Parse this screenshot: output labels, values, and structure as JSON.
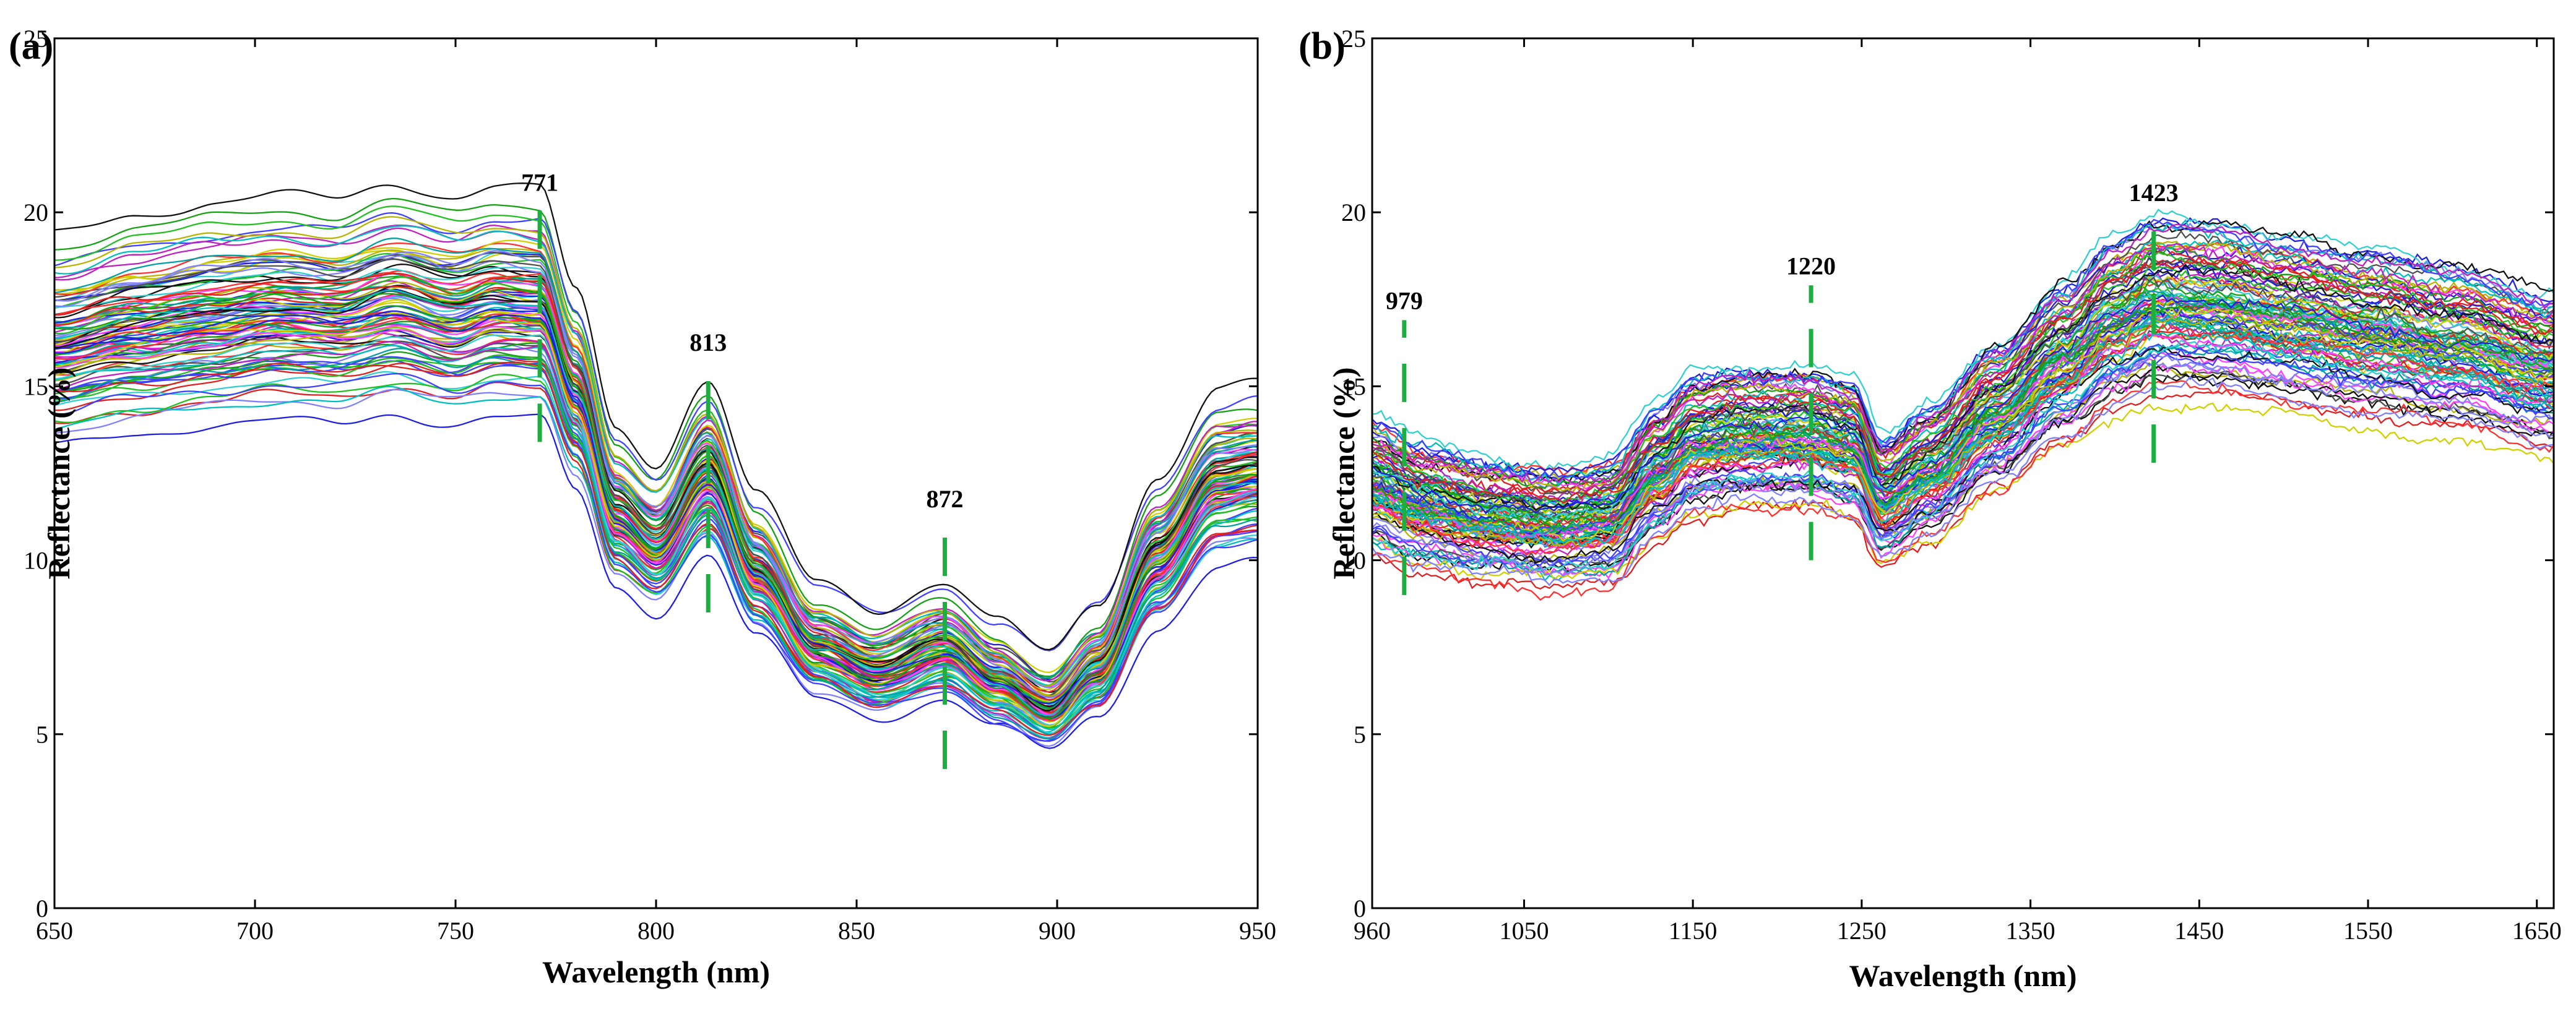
{
  "figure": {
    "description_note": "Two spectral reflectance plots: (a) VNIR range and (b) NIR range; many spectra curves with characteristic wavelengths marked by dashed green lines."
  },
  "chart_data": [
    {
      "type": "line",
      "panel_label": "(a)",
      "title": "",
      "xlabel": "Wavelength (nm)",
      "ylabel": "Reflectance (%)",
      "xlim": [
        650,
        950
      ],
      "ylim": [
        0,
        25
      ],
      "xticks": [
        650,
        700,
        750,
        800,
        850,
        900,
        950
      ],
      "yticks": [
        0,
        5,
        10,
        15,
        20,
        25
      ],
      "grid": false,
      "n_series": 100,
      "mean_spectrum": {
        "x": [
          650,
          670,
          690,
          705,
          720,
          735,
          750,
          760,
          771,
          780,
          790,
          800,
          813,
          825,
          840,
          855,
          872,
          885,
          898,
          910,
          925,
          940,
          950
        ],
        "y": [
          16.4,
          16.9,
          17.2,
          17.4,
          17.3,
          17.7,
          17.3,
          17.6,
          17.5,
          15.0,
          11.5,
          10.6,
          12.7,
          9.8,
          7.6,
          6.9,
          7.6,
          6.6,
          5.8,
          7.0,
          10.2,
          12.4,
          12.6
        ]
      },
      "vertical_markers": [
        {
          "x": 771,
          "label": "771",
          "y_from": 13.4,
          "y_to": 20.3
        },
        {
          "x": 813,
          "label": "813",
          "y_from": 8.5,
          "y_to": 15.7
        },
        {
          "x": 872,
          "label": "872",
          "y_from": 4.0,
          "y_to": 11.2
        }
      ],
      "marker_color": "#1aaf3f"
    },
    {
      "type": "line",
      "panel_label": "(b)",
      "title": "",
      "xlabel": "Wavelength (nm)",
      "ylabel": "Reflectance (%)",
      "xlim": [
        960,
        1660
      ],
      "ylim": [
        0,
        25
      ],
      "xticks": [
        960,
        1050,
        1150,
        1250,
        1350,
        1450,
        1550,
        1650
      ],
      "yticks": [
        0,
        5,
        10,
        15,
        20,
        25
      ],
      "grid": false,
      "n_series": 100,
      "mean_spectrum": {
        "x": [
          960,
          990,
          1030,
          1070,
          1100,
          1130,
          1150,
          1180,
          1220,
          1245,
          1262,
          1290,
          1330,
          1370,
          1400,
          1423,
          1460,
          1500,
          1550,
          1600,
          1660
        ],
        "y": [
          12.2,
          11.6,
          11.2,
          11.0,
          11.2,
          12.6,
          13.4,
          13.6,
          13.6,
          13.3,
          11.8,
          12.6,
          14.2,
          15.8,
          16.9,
          17.4,
          17.3,
          17.0,
          16.6,
          16.2,
          15.5
        ]
      },
      "vertical_markers": [
        {
          "x": 979,
          "label": "979",
          "y_from": 9.0,
          "y_to": 16.9
        },
        {
          "x": 1220,
          "label": "1220",
          "y_from": 10.0,
          "y_to": 17.9
        },
        {
          "x": 1423,
          "label": "1423",
          "y_from": 12.8,
          "y_to": 20.0
        }
      ],
      "marker_color": "#1aaf3f"
    }
  ],
  "palette": [
    "#1f1fe0",
    "#e02020",
    "#15a015",
    "#00bfbf",
    "#c020c0",
    "#b5b500",
    "#111111",
    "#4040ff",
    "#ff3030",
    "#20c020",
    "#30d0d0",
    "#ff40ff",
    "#d0d000",
    "#505050",
    "#8080ff",
    "#00a0a0"
  ]
}
